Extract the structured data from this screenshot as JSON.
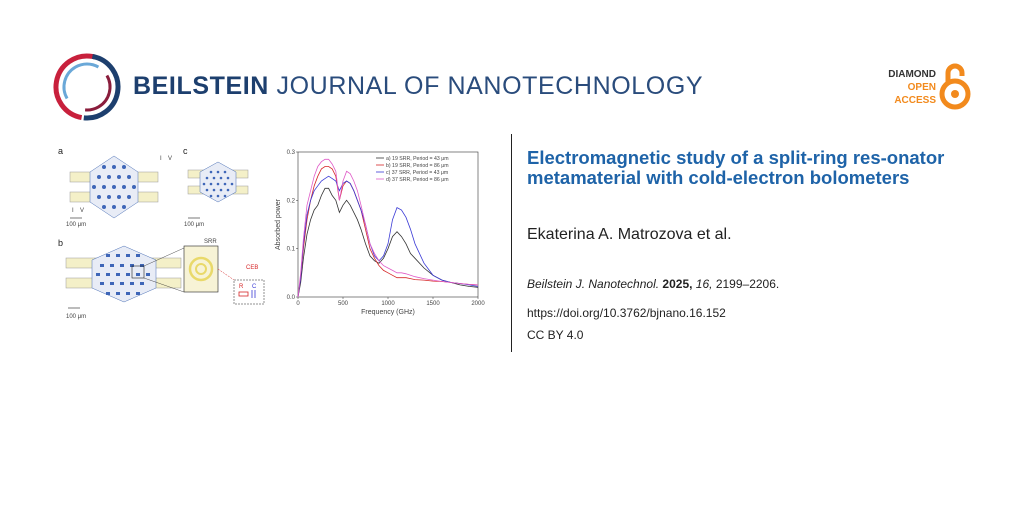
{
  "header": {
    "journal_bold": "BEILSTEIN",
    "journal_light": "JOURNAL OF NANOTECHNOLOGY",
    "oa_line1": "DIAMOND",
    "oa_line2": "OPEN",
    "oa_line3": "ACCESS",
    "colors": {
      "navy": "#1d3f6e",
      "red": "#c8203c",
      "orange": "#f28a1d",
      "title_blue": "#1e63a8"
    }
  },
  "article": {
    "title": "Electromagnetic study of a split-ring res-onator metamaterial with cold-electron bolometers",
    "authors": "Ekaterina A. Matrozova et al.",
    "journal_abbrev": "Beilstein J. Nanotechnol.",
    "year": "2025,",
    "volume": "16,",
    "pages": "2199–2206.",
    "doi": "https://doi.org/10.3762/bjnano.16.152",
    "license": "CC BY 4.0"
  },
  "figure": {
    "panel_a": "a",
    "panel_b": "b",
    "panel_c": "c",
    "scale_a": "100 μm",
    "scale_b": "100 μm",
    "scale_c": "100 μm",
    "label_i_top": "I",
    "label_v_top": "V",
    "label_i_bot": "I",
    "label_v_bot": "V",
    "srr_label": "SRR",
    "ceb_label": "CEB",
    "r_label": "R",
    "c_label": "C"
  },
  "chart_data": {
    "type": "line",
    "xlabel": "Frequency (GHz)",
    "ylabel": "Absorbed power",
    "xlim": [
      0,
      2000
    ],
    "ylim": [
      0,
      0.3
    ],
    "xticks": [
      "0",
      "500",
      "1000",
      "1500",
      "2000"
    ],
    "yticks": [
      "0.0",
      "0.1",
      "0.2",
      "0.3"
    ],
    "legend_position": "top-right",
    "series": [
      {
        "name": "a) 19 SRR, Period = 43 μm",
        "color": "#333333",
        "x": [
          0,
          30,
          60,
          100,
          140,
          180,
          220,
          260,
          300,
          340,
          380,
          420,
          460,
          500,
          540,
          580,
          620,
          660,
          700,
          750,
          800,
          850,
          900,
          950,
          1000,
          1050,
          1100,
          1150,
          1200,
          1250,
          1300,
          1400,
          1500,
          1600,
          1700,
          1800,
          1900,
          2000
        ],
        "y": [
          0.0,
          0.03,
          0.08,
          0.13,
          0.16,
          0.18,
          0.19,
          0.21,
          0.225,
          0.225,
          0.21,
          0.2,
          0.175,
          0.19,
          0.2,
          0.19,
          0.175,
          0.16,
          0.14,
          0.11,
          0.085,
          0.075,
          0.07,
          0.08,
          0.1,
          0.125,
          0.135,
          0.125,
          0.11,
          0.09,
          0.08,
          0.06,
          0.045,
          0.035,
          0.03,
          0.025,
          0.022,
          0.02
        ]
      },
      {
        "name": "b) 19 SRR, Period = 86 μm",
        "color": "#d62728",
        "x": [
          0,
          30,
          60,
          100,
          140,
          180,
          220,
          260,
          300,
          340,
          380,
          420,
          460,
          500,
          540,
          580,
          620,
          660,
          700,
          750,
          800,
          850,
          900,
          950,
          1000,
          1050,
          1100,
          1150,
          1200,
          1250,
          1300,
          1400,
          1500,
          1600,
          1700,
          1800,
          1900,
          2000
        ],
        "y": [
          0.0,
          0.04,
          0.1,
          0.16,
          0.2,
          0.23,
          0.25,
          0.265,
          0.27,
          0.27,
          0.265,
          0.25,
          0.2,
          0.23,
          0.24,
          0.235,
          0.22,
          0.2,
          0.18,
          0.14,
          0.1,
          0.08,
          0.065,
          0.055,
          0.05,
          0.045,
          0.04,
          0.04,
          0.04,
          0.038,
          0.036,
          0.035,
          0.033,
          0.032,
          0.03,
          0.028,
          0.026,
          0.025
        ]
      },
      {
        "name": "c) 37 SRR, Period = 43 μm",
        "color": "#3b3bd6",
        "x": [
          0,
          30,
          60,
          100,
          140,
          180,
          220,
          260,
          300,
          340,
          380,
          420,
          460,
          500,
          540,
          580,
          620,
          660,
          700,
          750,
          800,
          850,
          900,
          950,
          1000,
          1050,
          1100,
          1150,
          1200,
          1250,
          1300,
          1400,
          1500,
          1600,
          1700,
          1800,
          1900,
          2000
        ],
        "y": [
          0.0,
          0.04,
          0.11,
          0.17,
          0.2,
          0.22,
          0.23,
          0.24,
          0.245,
          0.25,
          0.245,
          0.24,
          0.22,
          0.235,
          0.24,
          0.235,
          0.22,
          0.2,
          0.18,
          0.15,
          0.11,
          0.085,
          0.075,
          0.085,
          0.11,
          0.16,
          0.185,
          0.18,
          0.165,
          0.14,
          0.11,
          0.07,
          0.045,
          0.035,
          0.03,
          0.028,
          0.025,
          0.022
        ]
      },
      {
        "name": "d) 37 SRR, Period = 86 μm",
        "color": "#e05cc8",
        "x": [
          0,
          30,
          60,
          100,
          140,
          180,
          220,
          260,
          300,
          340,
          380,
          420,
          460,
          500,
          540,
          580,
          620,
          660,
          700,
          750,
          800,
          850,
          900,
          950,
          1000,
          1050,
          1100,
          1150,
          1200,
          1250,
          1300,
          1400,
          1500,
          1600,
          1700,
          1800,
          1900,
          2000
        ],
        "y": [
          0.0,
          0.05,
          0.12,
          0.19,
          0.22,
          0.25,
          0.27,
          0.28,
          0.285,
          0.285,
          0.275,
          0.26,
          0.2,
          0.24,
          0.26,
          0.255,
          0.24,
          0.22,
          0.19,
          0.15,
          0.11,
          0.09,
          0.075,
          0.065,
          0.06,
          0.055,
          0.05,
          0.05,
          0.048,
          0.045,
          0.042,
          0.038,
          0.035,
          0.032,
          0.03,
          0.028,
          0.026,
          0.025
        ]
      }
    ]
  }
}
